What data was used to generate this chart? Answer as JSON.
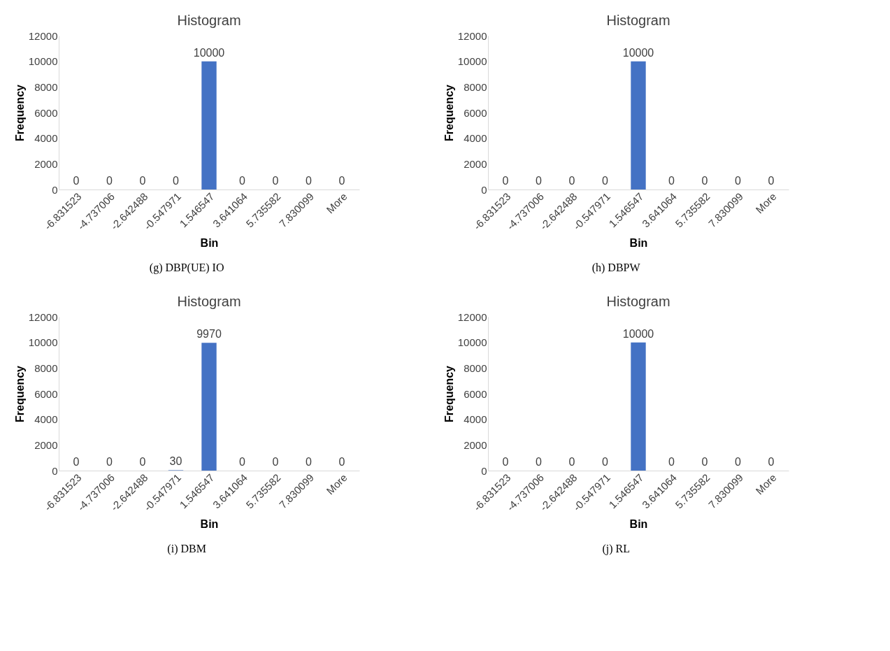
{
  "chart_data": [
    {
      "type": "bar",
      "title": "Histogram",
      "xlabel": "Bin",
      "ylabel": "Frequency",
      "categories": [
        "-6.831523",
        "-4.737006",
        "-2.642488",
        "-0.547971",
        "1.546547",
        "3.641064",
        "5.735582",
        "7.830099",
        "More"
      ],
      "values": [
        0,
        0,
        0,
        0,
        10000,
        0,
        0,
        0,
        0
      ],
      "color": "#4472c4",
      "ylim": [
        0,
        12000
      ],
      "yticks": [
        0,
        2000,
        4000,
        6000,
        8000,
        10000,
        12000
      ],
      "data_labels": true,
      "grid": false,
      "annotations": [
        "(g) DBP(UE) IO"
      ]
    },
    {
      "type": "bar",
      "title": "Histogram",
      "xlabel": "Bin",
      "ylabel": "Frequency",
      "categories": [
        "-6.831523",
        "-4.737006",
        "-2.642488",
        "-0.547971",
        "1.546547",
        "3.641064",
        "5.735582",
        "7.830099",
        "More"
      ],
      "values": [
        0,
        0,
        0,
        0,
        10000,
        0,
        0,
        0,
        0
      ],
      "color": "#4472c4",
      "ylim": [
        0,
        12000
      ],
      "yticks": [
        0,
        2000,
        4000,
        6000,
        8000,
        10000,
        12000
      ],
      "data_labels": true,
      "grid": false,
      "annotations": [
        "(h) DBPW"
      ]
    },
    {
      "type": "bar",
      "title": "Histogram",
      "xlabel": "Bin",
      "ylabel": "Frequency",
      "categories": [
        "-6.831523",
        "-4.737006",
        "-2.642488",
        "-0.547971",
        "1.546547",
        "3.641064",
        "5.735582",
        "7.830099",
        "More"
      ],
      "values": [
        0,
        0,
        0,
        30,
        9970,
        0,
        0,
        0,
        0
      ],
      "color": "#4472c4",
      "ylim": [
        0,
        12000
      ],
      "yticks": [
        0,
        2000,
        4000,
        6000,
        8000,
        10000,
        12000
      ],
      "data_labels": true,
      "grid": false,
      "annotations": [
        "(i) DBM"
      ]
    },
    {
      "type": "bar",
      "title": "Histogram",
      "xlabel": "Bin",
      "ylabel": "Frequency",
      "categories": [
        "-6.831523",
        "-4.737006",
        "-2.642488",
        "-0.547971",
        "1.546547",
        "3.641064",
        "5.735582",
        "7.830099",
        "More"
      ],
      "values": [
        0,
        0,
        0,
        0,
        10000,
        0,
        0,
        0,
        0
      ],
      "color": "#4472c4",
      "ylim": [
        0,
        12000
      ],
      "yticks": [
        0,
        2000,
        4000,
        6000,
        8000,
        10000,
        12000
      ],
      "data_labels": true,
      "grid": false,
      "annotations": [
        "(j) RL"
      ]
    }
  ]
}
